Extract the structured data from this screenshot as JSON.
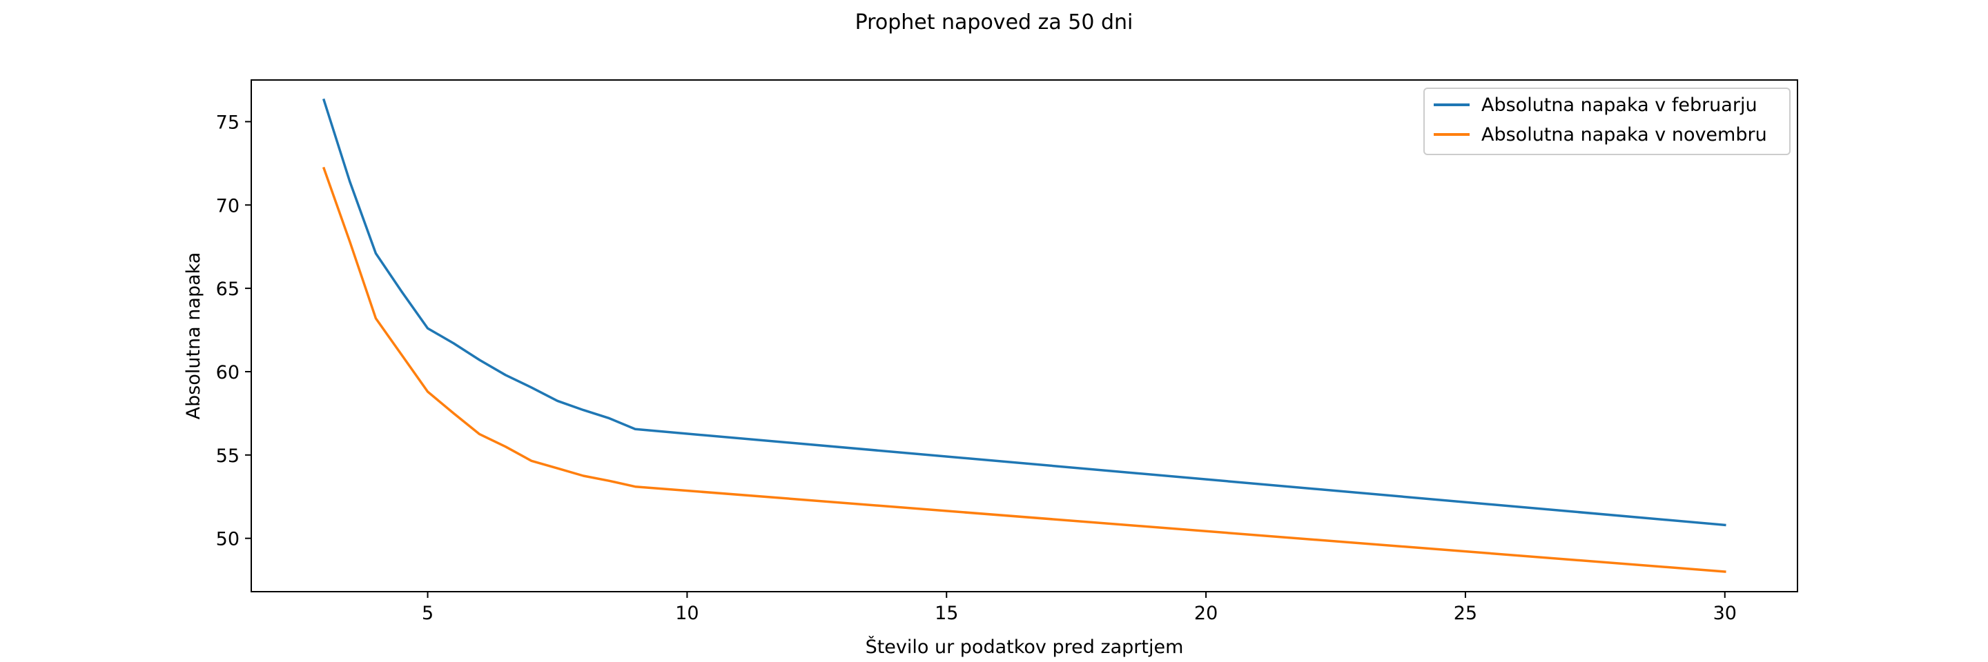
{
  "chart_data": {
    "type": "line",
    "title": "Prophet napoved za 50 dni",
    "xlabel": "Število ur podatkov pred zaprtjem",
    "ylabel": "Absolutna napaka",
    "xlim": [
      1.6,
      31.4
    ],
    "ylim": [
      46.8,
      77.5
    ],
    "xticks": [
      5,
      10,
      15,
      20,
      25,
      30
    ],
    "yticks": [
      50,
      55,
      60,
      65,
      70,
      75
    ],
    "grid": false,
    "legend_position": "top-right",
    "series": [
      {
        "name": "Absolutna napaka v februarju",
        "color": "#1f77b4",
        "x": [
          3,
          3.5,
          4,
          4.5,
          5,
          5.5,
          6,
          6.5,
          7,
          7.5,
          8,
          8.5,
          9,
          30
        ],
        "y": [
          76.3,
          71.4,
          67.1,
          64.8,
          62.6,
          61.7,
          60.7,
          59.8,
          59.05,
          58.25,
          57.7,
          57.2,
          56.55,
          50.8
        ]
      },
      {
        "name": "Absolutna napaka v novembru",
        "color": "#ff7f0e",
        "x": [
          3,
          3.5,
          4,
          4.5,
          5,
          5.5,
          6,
          6.5,
          7,
          7.5,
          8,
          8.5,
          9,
          30
        ],
        "y": [
          72.2,
          67.8,
          63.2,
          61.0,
          58.8,
          57.5,
          56.25,
          55.5,
          54.65,
          54.2,
          53.75,
          53.45,
          53.1,
          48.0
        ]
      }
    ]
  }
}
